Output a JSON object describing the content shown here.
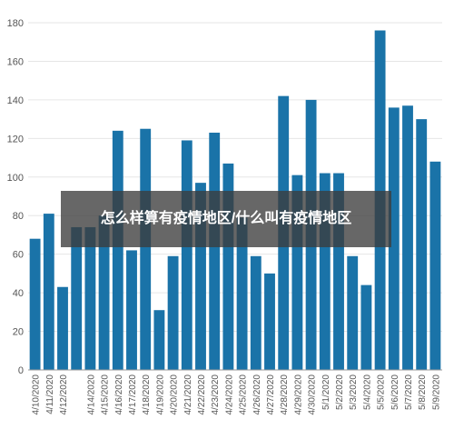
{
  "overlay": {
    "caption": "怎么样算有疫情地区/什么叫有疫情地区"
  },
  "chart_data": {
    "type": "bar",
    "title": "",
    "xlabel": "",
    "ylabel": "",
    "ylim": [
      0,
      180
    ],
    "yticks": [
      0,
      20,
      40,
      60,
      80,
      100,
      120,
      140,
      160,
      180
    ],
    "grid": true,
    "bar_color": "#1a73a8",
    "categories": [
      "4/10/2020",
      "4/11/2020",
      "4/12/2020",
      "4/13/2020",
      "4/14/2020",
      "4/15/2020",
      "4/16/2020",
      "4/17/2020",
      "4/18/2020",
      "4/19/2020",
      "4/20/2020",
      "4/21/2020",
      "4/22/2020",
      "4/23/2020",
      "4/24/2020",
      "4/25/2020",
      "4/26/2020",
      "4/27/2020",
      "4/28/2020",
      "4/29/2020",
      "4/30/2020",
      "5/1/2020",
      "5/2/2020",
      "5/3/2020",
      "5/4/2020",
      "5/5/2020",
      "5/6/2020",
      "5/7/2020",
      "5/8/2020",
      "5/9/2020"
    ],
    "labeled_categories": [
      "4/10/2020",
      "4/11/2020",
      "4/12/2020",
      "4/14/2020",
      "4/15/2020",
      "4/16/2020",
      "4/17/2020",
      "4/18/2020",
      "4/19/2020",
      "4/20/2020",
      "4/21/2020",
      "4/22/2020",
      "4/23/2020",
      "4/24/2020",
      "4/25/2020",
      "4/26/2020",
      "4/27/2020",
      "4/28/2020",
      "4/29/2020",
      "4/30/2020",
      "5/1/2020",
      "5/2/2020",
      "5/3/2020",
      "5/4/2020",
      "5/5/2020",
      "5/6/2020",
      "5/7/2020",
      "5/8/2020",
      "5/9/2020"
    ],
    "values": [
      68,
      81,
      43,
      74,
      74,
      80,
      124,
      62,
      125,
      31,
      59,
      119,
      97,
      123,
      107,
      79,
      59,
      50,
      142,
      101,
      140,
      102,
      102,
      59,
      44,
      176,
      136,
      137,
      130,
      108
    ]
  }
}
